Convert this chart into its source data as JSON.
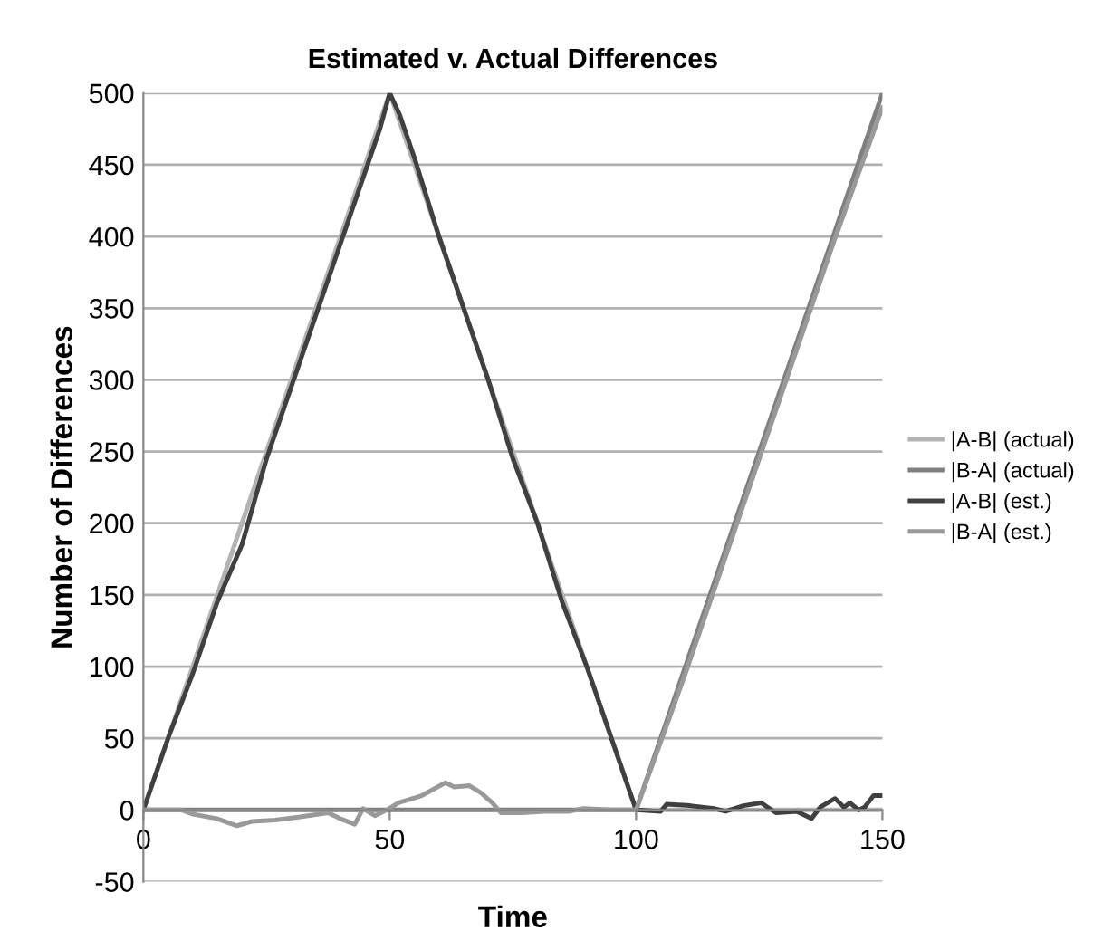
{
  "chart_data": {
    "type": "line",
    "title": "Estimated v. Actual Differences",
    "xlabel": "Time",
    "ylabel": "Number of Differences",
    "xlim": [
      0,
      150
    ],
    "xticks": [
      0,
      50,
      100,
      150
    ],
    "ylim": [
      -50,
      500
    ],
    "yticks": [
      -50,
      0,
      50,
      100,
      150,
      200,
      250,
      300,
      350,
      400,
      450,
      500
    ],
    "grid": "y",
    "legend": "right",
    "marker": "none",
    "line_style": "solid",
    "series": [
      {
        "name": "|A-B| (actual)",
        "color": "#b3b3b3",
        "x": [
          0,
          50,
          100,
          150
        ],
        "values": [
          0,
          500,
          0,
          0
        ]
      },
      {
        "name": "|B-A| (actual)",
        "color": "#7f7f7f",
        "x": [
          0,
          100,
          150
        ],
        "values": [
          0,
          0,
          500
        ]
      },
      {
        "name": "|A-B| (est.)",
        "color": "#404040",
        "x": [
          0,
          5,
          10,
          15,
          20,
          25,
          30,
          35,
          40,
          45,
          48,
          50,
          52,
          55,
          60,
          65,
          70,
          75,
          80,
          85,
          90,
          95,
          100,
          105,
          106.2,
          111,
          115.8,
          118.2,
          121.8,
          125.4,
          128.4,
          132.6,
          135.6,
          137.4,
          140.4,
          142.2,
          143.4,
          145.2,
          146.4,
          148.2,
          150
        ],
        "values": [
          0,
          50,
          95,
          145,
          185,
          245,
          295,
          345,
          395,
          445,
          475,
          500,
          485,
          455,
          400,
          350,
          300,
          245,
          200,
          145,
          100,
          50,
          0,
          -1,
          4,
          3,
          1,
          -1,
          3,
          5,
          -2,
          -1,
          -6,
          2,
          8,
          2,
          5,
          0,
          2,
          10,
          10
        ]
      },
      {
        "name": "|B-A| (est.)",
        "color": "#999999",
        "x": [
          0,
          7.7,
          10.1,
          14.9,
          19.0,
          22.0,
          26.8,
          31.5,
          37.5,
          39.9,
          42.9,
          44.6,
          47.0,
          49.4,
          51.8,
          56.5,
          61.3,
          63.1,
          66.1,
          68.5,
          70.8,
          72.6,
          76.8,
          81.5,
          86.3,
          89.3,
          95,
          100,
          110,
          120,
          130,
          140,
          150
        ],
        "values": [
          0,
          0,
          -3,
          -6,
          -11,
          -8,
          -7,
          -5,
          -2,
          -6,
          -10,
          1,
          -4,
          0,
          5,
          10,
          19,
          16,
          17,
          12,
          5,
          -2,
          -2,
          -1,
          -1,
          1,
          0,
          0,
          95,
          195,
          295,
          395,
          490
        ]
      }
    ]
  }
}
